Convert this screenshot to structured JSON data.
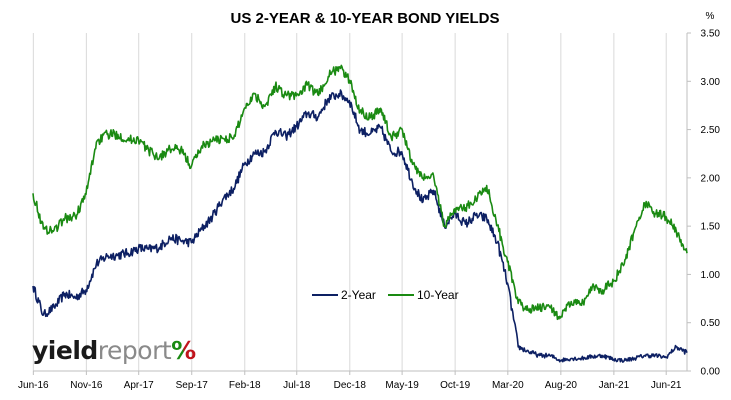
{
  "chart_data": {
    "type": "line",
    "title": "US 2-YEAR & 10-YEAR BOND YIELDS",
    "y_unit_label": "%",
    "ylim": [
      0,
      3.5
    ],
    "y_ticks": [
      "0.00",
      "0.50",
      "1.00",
      "1.50",
      "2.00",
      "2.50",
      "3.00",
      "3.50"
    ],
    "x_ticks": [
      "Jun-16",
      "Nov-16",
      "Apr-17",
      "Sep-17",
      "Feb-18",
      "Jul-18",
      "Dec-18",
      "May-19",
      "Oct-19",
      "Mar-20",
      "Aug-20",
      "Jan-21",
      "Jun-21"
    ],
    "grid": "vertical",
    "legend_position": "center",
    "series": [
      {
        "name": "2-Year",
        "color": "#0d2063",
        "values": [
          [
            "2016-05-31",
            0.88
          ],
          [
            "2016-06-30",
            0.58
          ],
          [
            "2016-07-31",
            0.66
          ],
          [
            "2016-08-31",
            0.8
          ],
          [
            "2016-09-30",
            0.76
          ],
          [
            "2016-10-31",
            0.84
          ],
          [
            "2016-11-30",
            1.11
          ],
          [
            "2016-12-31",
            1.19
          ],
          [
            "2017-01-31",
            1.2
          ],
          [
            "2017-02-28",
            1.22
          ],
          [
            "2017-03-31",
            1.27
          ],
          [
            "2017-04-30",
            1.26
          ],
          [
            "2017-05-31",
            1.28
          ],
          [
            "2017-06-30",
            1.38
          ],
          [
            "2017-07-31",
            1.35
          ],
          [
            "2017-08-31",
            1.33
          ],
          [
            "2017-09-30",
            1.47
          ],
          [
            "2017-10-31",
            1.6
          ],
          [
            "2017-11-30",
            1.78
          ],
          [
            "2017-12-31",
            1.89
          ],
          [
            "2018-01-31",
            2.14
          ],
          [
            "2018-02-28",
            2.25
          ],
          [
            "2018-03-31",
            2.27
          ],
          [
            "2018-04-30",
            2.49
          ],
          [
            "2018-05-31",
            2.43
          ],
          [
            "2018-06-30",
            2.53
          ],
          [
            "2018-07-31",
            2.67
          ],
          [
            "2018-08-31",
            2.63
          ],
          [
            "2018-09-30",
            2.82
          ],
          [
            "2018-10-31",
            2.87
          ],
          [
            "2018-11-30",
            2.8
          ],
          [
            "2018-12-31",
            2.49
          ],
          [
            "2019-01-31",
            2.46
          ],
          [
            "2019-02-28",
            2.52
          ],
          [
            "2019-03-31",
            2.27
          ],
          [
            "2019-04-30",
            2.27
          ],
          [
            "2019-05-31",
            1.95
          ],
          [
            "2019-06-30",
            1.75
          ],
          [
            "2019-07-31",
            1.87
          ],
          [
            "2019-08-31",
            1.5
          ],
          [
            "2019-09-30",
            1.63
          ],
          [
            "2019-10-31",
            1.52
          ],
          [
            "2019-11-30",
            1.61
          ],
          [
            "2019-12-31",
            1.58
          ],
          [
            "2020-01-31",
            1.33
          ],
          [
            "2020-02-29",
            0.91
          ],
          [
            "2020-03-31",
            0.25
          ],
          [
            "2020-04-30",
            0.2
          ],
          [
            "2020-05-31",
            0.16
          ],
          [
            "2020-06-30",
            0.16
          ],
          [
            "2020-07-31",
            0.11
          ],
          [
            "2020-08-31",
            0.13
          ],
          [
            "2020-09-30",
            0.13
          ],
          [
            "2020-10-31",
            0.15
          ],
          [
            "2020-11-30",
            0.16
          ],
          [
            "2020-12-31",
            0.12
          ],
          [
            "2021-01-31",
            0.11
          ],
          [
            "2021-02-28",
            0.13
          ],
          [
            "2021-03-31",
            0.16
          ],
          [
            "2021-04-30",
            0.16
          ],
          [
            "2021-05-31",
            0.14
          ],
          [
            "2021-06-30",
            0.25
          ],
          [
            "2021-07-31",
            0.19
          ]
        ]
      },
      {
        "name": "10-Year",
        "color": "#1a8a12",
        "values": [
          [
            "2016-05-31",
            1.84
          ],
          [
            "2016-06-30",
            1.47
          ],
          [
            "2016-07-31",
            1.46
          ],
          [
            "2016-08-31",
            1.58
          ],
          [
            "2016-09-30",
            1.6
          ],
          [
            "2016-10-31",
            1.83
          ],
          [
            "2016-11-30",
            2.37
          ],
          [
            "2016-12-31",
            2.45
          ],
          [
            "2017-01-31",
            2.45
          ],
          [
            "2017-02-28",
            2.39
          ],
          [
            "2017-03-31",
            2.4
          ],
          [
            "2017-04-30",
            2.28
          ],
          [
            "2017-05-31",
            2.21
          ],
          [
            "2017-06-30",
            2.3
          ],
          [
            "2017-07-31",
            2.29
          ],
          [
            "2017-08-31",
            2.12
          ],
          [
            "2017-09-30",
            2.33
          ],
          [
            "2017-10-31",
            2.38
          ],
          [
            "2017-11-30",
            2.41
          ],
          [
            "2017-12-31",
            2.41
          ],
          [
            "2018-01-31",
            2.72
          ],
          [
            "2018-02-28",
            2.87
          ],
          [
            "2018-03-31",
            2.74
          ],
          [
            "2018-04-30",
            2.95
          ],
          [
            "2018-05-31",
            2.86
          ],
          [
            "2018-06-30",
            2.85
          ],
          [
            "2018-07-31",
            2.96
          ],
          [
            "2018-08-31",
            2.86
          ],
          [
            "2018-09-30",
            3.05
          ],
          [
            "2018-10-31",
            3.15
          ],
          [
            "2018-11-30",
            3.01
          ],
          [
            "2018-12-31",
            2.69
          ],
          [
            "2019-01-31",
            2.63
          ],
          [
            "2019-02-28",
            2.72
          ],
          [
            "2019-03-31",
            2.41
          ],
          [
            "2019-04-30",
            2.51
          ],
          [
            "2019-05-31",
            2.14
          ],
          [
            "2019-06-30",
            2.0
          ],
          [
            "2019-07-31",
            2.02
          ],
          [
            "2019-08-31",
            1.5
          ],
          [
            "2019-09-30",
            1.68
          ],
          [
            "2019-10-31",
            1.69
          ],
          [
            "2019-11-30",
            1.78
          ],
          [
            "2019-12-31",
            1.92
          ],
          [
            "2020-01-31",
            1.51
          ],
          [
            "2020-02-29",
            1.13
          ],
          [
            "2020-03-31",
            0.7
          ],
          [
            "2020-04-30",
            0.64
          ],
          [
            "2020-05-31",
            0.65
          ],
          [
            "2020-06-30",
            0.66
          ],
          [
            "2020-07-31",
            0.55
          ],
          [
            "2020-08-31",
            0.72
          ],
          [
            "2020-09-30",
            0.68
          ],
          [
            "2020-10-31",
            0.88
          ],
          [
            "2020-11-30",
            0.84
          ],
          [
            "2020-12-31",
            0.93
          ],
          [
            "2021-01-31",
            1.11
          ],
          [
            "2021-02-28",
            1.44
          ],
          [
            "2021-03-31",
            1.74
          ],
          [
            "2021-04-30",
            1.63
          ],
          [
            "2021-05-31",
            1.6
          ],
          [
            "2021-06-30",
            1.45
          ],
          [
            "2021-07-31",
            1.22
          ]
        ]
      }
    ]
  },
  "branding": {
    "logo_part1": "yield",
    "logo_part2": "report",
    "logo_part3": "%",
    "logo_colors": [
      "#1a1a1a",
      "#8a8a8a",
      "#1a8a12",
      "#c0141c"
    ]
  }
}
